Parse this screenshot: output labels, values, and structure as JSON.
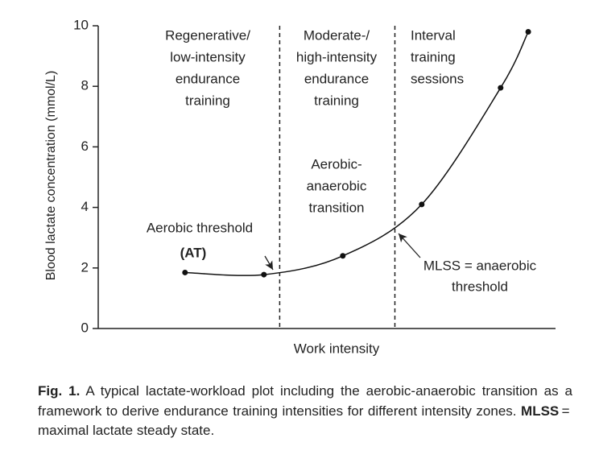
{
  "chart_data": {
    "type": "line",
    "y_label": "Blood lactate concentration (mmol/L)",
    "x_label": "Work intensity",
    "x": [
      1.1,
      2.1,
      3.1,
      4.1,
      5.1,
      5.45
    ],
    "series": [
      {
        "values": [
          1.85,
          1.78,
          2.4,
          4.1,
          7.95,
          9.8
        ],
        "color": "#111"
      }
    ],
    "xlim": [
      0,
      6
    ],
    "ylim": [
      0,
      10
    ],
    "yticks": [
      0,
      2,
      4,
      6,
      8,
      10
    ],
    "zone_boundaries": [
      2.3,
      3.76
    ],
    "zone_labels": [
      [
        "Regenerative/",
        "low-intensity",
        "endurance",
        "training"
      ],
      [
        "Moderate-/",
        "high-intensity",
        "endurance",
        "training"
      ],
      [
        "Interval",
        "training",
        "sessions"
      ]
    ],
    "transition_label": [
      "Aerobic-",
      "anaerobic",
      "transition"
    ],
    "aerobic_threshold": {
      "label": "Aerobic threshold",
      "abbrev": "(AT)"
    },
    "mlss": {
      "label": [
        "MLSS = anaerobic",
        "threshold"
      ]
    }
  },
  "caption": {
    "fig": "Fig. 1.",
    "text1": " A typical lactate-workload plot including the aerobic-anaerobic transition as a framework to derive endurance training intensities for different intensity zones. ",
    "bold": "MLSS",
    "text2": " = maximal lactate steady state."
  }
}
